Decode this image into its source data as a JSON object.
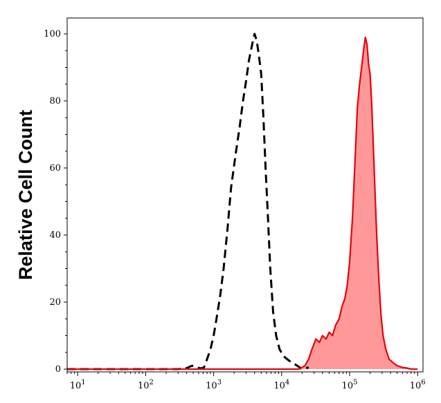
{
  "chart_data": {
    "type": "area",
    "title": "",
    "xlabel": "",
    "ylabel": "Relative Cell Count",
    "x_scale": "log",
    "xlim": [
      7,
      1200000
    ],
    "ylim": [
      0,
      106
    ],
    "y_ticks": [
      0,
      20,
      40,
      60,
      80,
      100
    ],
    "x_ticks": [
      {
        "value": 10,
        "base": "10",
        "exp": "1"
      },
      {
        "value": 100,
        "base": "10",
        "exp": "2"
      },
      {
        "value": 1000,
        "base": "10",
        "exp": "3"
      },
      {
        "value": 10000,
        "base": "10",
        "exp": "4"
      },
      {
        "value": 100000,
        "base": "10",
        "exp": "5"
      },
      {
        "value": 1000000,
        "base": "10",
        "exp": "6"
      }
    ],
    "grid": false,
    "series": [
      {
        "style": "dashed",
        "color": "#000000",
        "fill": "none",
        "points": [
          [
            7,
            0
          ],
          [
            100,
            0
          ],
          [
            300,
            0
          ],
          [
            400,
            0.3
          ],
          [
            480,
            1
          ],
          [
            550,
            0.6
          ],
          [
            650,
            0.2
          ],
          [
            720,
            0.5
          ],
          [
            800,
            3
          ],
          [
            900,
            6
          ],
          [
            1000,
            10
          ],
          [
            1100,
            15
          ],
          [
            1250,
            22
          ],
          [
            1400,
            30
          ],
          [
            1600,
            42
          ],
          [
            1800,
            54
          ],
          [
            2100,
            64
          ],
          [
            2400,
            72
          ],
          [
            2700,
            80
          ],
          [
            3000,
            86
          ],
          [
            3300,
            92
          ],
          [
            3700,
            97
          ],
          [
            4000,
            100
          ],
          [
            4300,
            98
          ],
          [
            4600,
            94
          ],
          [
            5000,
            88
          ],
          [
            5400,
            75
          ],
          [
            5800,
            60
          ],
          [
            6300,
            45
          ],
          [
            6800,
            30
          ],
          [
            7500,
            17
          ],
          [
            8300,
            10
          ],
          [
            9300,
            6
          ],
          [
            10500,
            4
          ],
          [
            12000,
            3
          ],
          [
            14000,
            2
          ],
          [
            17000,
            1
          ],
          [
            20000,
            0
          ],
          [
            25000,
            0.5
          ]
        ]
      },
      {
        "style": "solid",
        "color": "#e8000b",
        "fill": "#ff9999",
        "points": [
          [
            7,
            0
          ],
          [
            1000,
            0
          ],
          [
            10000,
            0
          ],
          [
            18000,
            0
          ],
          [
            22000,
            1
          ],
          [
            25000,
            3
          ],
          [
            28000,
            6
          ],
          [
            32000,
            9
          ],
          [
            36000,
            8
          ],
          [
            40000,
            10
          ],
          [
            45000,
            9
          ],
          [
            50000,
            11
          ],
          [
            56000,
            10
          ],
          [
            62000,
            13
          ],
          [
            70000,
            15
          ],
          [
            78000,
            19
          ],
          [
            85000,
            21
          ],
          [
            92000,
            25
          ],
          [
            100000,
            32
          ],
          [
            110000,
            45
          ],
          [
            120000,
            62
          ],
          [
            130000,
            78
          ],
          [
            140000,
            85
          ],
          [
            150000,
            90
          ],
          [
            160000,
            95
          ],
          [
            170000,
            99
          ],
          [
            180000,
            97
          ],
          [
            190000,
            91
          ],
          [
            200000,
            88
          ],
          [
            210000,
            80
          ],
          [
            220000,
            70
          ],
          [
            235000,
            54
          ],
          [
            250000,
            40
          ],
          [
            270000,
            26
          ],
          [
            290000,
            16
          ],
          [
            310000,
            10
          ],
          [
            340000,
            6
          ],
          [
            380000,
            3
          ],
          [
            430000,
            2
          ],
          [
            500000,
            1
          ],
          [
            600000,
            0.5
          ],
          [
            700000,
            0.3
          ],
          [
            800000,
            0
          ],
          [
            1000000,
            0
          ]
        ]
      }
    ]
  }
}
